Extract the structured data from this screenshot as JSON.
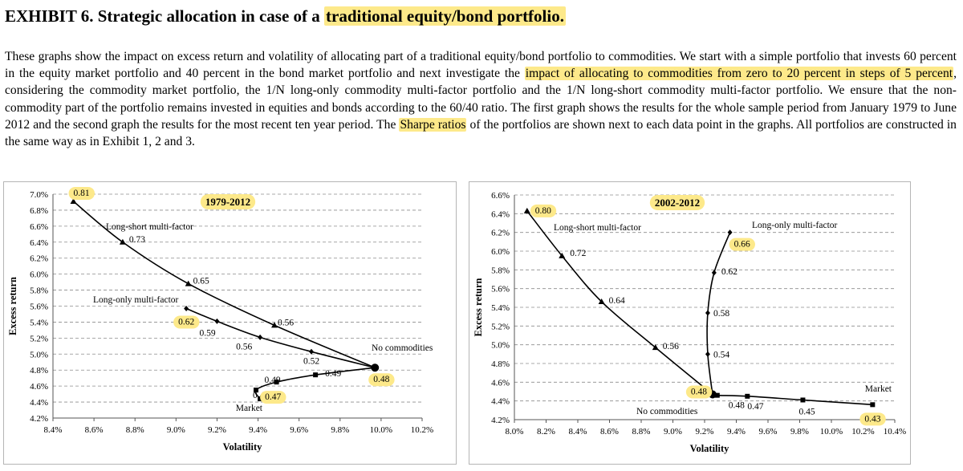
{
  "title": {
    "prefix": "EXHIBIT 6. Strategic allocation in case of a ",
    "highlight": "traditional equity/bond portfolio."
  },
  "description": {
    "part1": "These graphs show the impact on excess return and volatility of allocating part of a traditional equity/bond portfolio to commodities. We start with a simple portfolio that invests 60 percent in the equity market portfolio and 40 percent in the bond market portfolio and next investigate the ",
    "highlight1": "impact of allocating to commodities from zero to 20 percent in steps of 5 percent",
    "part2": ", considering the commodity market portfolio, the 1/N long-only commodity multi-factor portfolio and the 1/N long-short commodity multi-factor portfolio. We ensure that the non-commodity part of the portfolio remains invested in equities and bonds according to the 60/40 ratio. The first graph shows the results for the whole sample period from January 1979 to June 2012 and the second graph the results for the most recent ten year period. The ",
    "highlight2": "Sharpe ratios",
    "part3": " of the portfolios are shown next to each data point in the graphs. All portfolios are constructed in the same way as in Exhibit 1, 2 and 3."
  },
  "colors": {
    "highlight": "#fde98a",
    "line": "#000000",
    "grid": "#8c8c8c",
    "frame": "#b5b5b5"
  },
  "chart_data": [
    {
      "type": "line",
      "title": "1979-2012",
      "xlabel": "Volatility",
      "ylabel": "Excess return",
      "xlim": [
        8.4,
        10.2
      ],
      "ylim": [
        4.2,
        7.0
      ],
      "xticks": [
        8.4,
        8.6,
        8.8,
        9.0,
        9.2,
        9.4,
        9.6,
        9.8,
        10.0,
        10.2
      ],
      "yticks": [
        4.2,
        4.4,
        4.6,
        4.8,
        5.0,
        5.2,
        5.4,
        5.6,
        5.8,
        6.0,
        6.2,
        6.4,
        6.6,
        6.8,
        7.0
      ],
      "xtick_labels": [
        "8.4%",
        "8.6%",
        "8.8%",
        "9.0%",
        "9.2%",
        "9.4%",
        "9.6%",
        "9.8%",
        "10.0%",
        "10.2%"
      ],
      "ytick_labels": [
        "4.2%",
        "4.4%",
        "4.6%",
        "4.8%",
        "5.0%",
        "5.2%",
        "5.4%",
        "5.6%",
        "5.8%",
        "6.0%",
        "6.2%",
        "6.4%",
        "6.6%",
        "6.8%",
        "7.0%"
      ],
      "base": {
        "name": "No commodities",
        "x": 9.97,
        "y": 4.83,
        "sharpe": "0.48",
        "highlight": true
      },
      "series": [
        {
          "name": "Long-short multi-factor",
          "marker": "triangle",
          "x": [
            9.48,
            9.06,
            8.74,
            8.5
          ],
          "y": [
            5.36,
            5.88,
            6.4,
            6.91
          ],
          "sharpe": [
            "0.56",
            "0.65",
            "0.73",
            "0.81"
          ],
          "highlight": [
            false,
            false,
            false,
            true
          ]
        },
        {
          "name": "Long-only multi-factor",
          "marker": "diamond",
          "x": [
            9.66,
            9.41,
            9.2,
            9.05
          ],
          "y": [
            5.03,
            5.21,
            5.41,
            5.57
          ],
          "sharpe": [
            "0.52",
            "0.56",
            "0.59",
            "0.62"
          ],
          "highlight": [
            false,
            false,
            false,
            true
          ]
        },
        {
          "name": "Market",
          "marker": "square",
          "x": [
            9.68,
            9.49,
            9.39,
            9.41
          ],
          "y": [
            4.74,
            4.65,
            4.55,
            4.44
          ],
          "sharpe": [
            "0.49",
            "0.49",
            "0.48",
            "0.47"
          ],
          "highlight": [
            false,
            false,
            false,
            true
          ]
        }
      ]
    },
    {
      "type": "line",
      "title": "2002-2012",
      "xlabel": "Volatility",
      "ylabel": "Excess return",
      "xlim": [
        8.0,
        10.4
      ],
      "ylim": [
        4.2,
        6.6
      ],
      "xticks": [
        8.0,
        8.2,
        8.4,
        8.6,
        8.8,
        9.0,
        9.2,
        9.4,
        9.6,
        9.8,
        10.0,
        10.2,
        10.4
      ],
      "yticks": [
        4.2,
        4.4,
        4.6,
        4.8,
        5.0,
        5.2,
        5.4,
        5.6,
        5.8,
        6.0,
        6.2,
        6.4,
        6.6
      ],
      "xtick_labels": [
        "8.0%",
        "8.2%",
        "8.4%",
        "8.6%",
        "8.8%",
        "9.0%",
        "9.2%",
        "9.4%",
        "9.6%",
        "9.8%",
        "10.0%",
        "10.2%",
        "10.4%"
      ],
      "ytick_labels": [
        "4.2%",
        "4.4%",
        "4.6%",
        "4.8%",
        "5.0%",
        "5.2%",
        "5.4%",
        "5.6%",
        "5.8%",
        "6.0%",
        "6.2%",
        "6.4%",
        "6.6%"
      ],
      "base": {
        "name": "No commodities",
        "x": 9.25,
        "y": 4.47,
        "sharpe": "0.48",
        "highlight": true
      },
      "series": [
        {
          "name": "Long-short multi-factor",
          "marker": "triangle",
          "x": [
            8.89,
            8.55,
            8.3,
            8.08
          ],
          "y": [
            4.97,
            5.46,
            5.95,
            6.43
          ],
          "sharpe": [
            "0.56",
            "0.64",
            "0.72",
            "0.80"
          ],
          "highlight": [
            false,
            false,
            false,
            true
          ]
        },
        {
          "name": "Long-only multi-factor",
          "marker": "diamond",
          "x": [
            9.22,
            9.22,
            9.26,
            9.36
          ],
          "y": [
            4.9,
            5.34,
            5.77,
            6.2
          ],
          "sharpe": [
            "0.54",
            "0.58",
            "0.62",
            "0.66"
          ],
          "highlight": [
            false,
            false,
            false,
            true
          ]
        },
        {
          "name": "Market",
          "marker": "square",
          "x": [
            9.28,
            9.47,
            9.82,
            10.26
          ],
          "y": [
            4.46,
            4.45,
            4.41,
            4.36
          ],
          "sharpe": [
            "0.48",
            "0.47",
            "0.45",
            "0.43"
          ],
          "highlight": [
            false,
            false,
            false,
            true
          ]
        }
      ]
    }
  ]
}
